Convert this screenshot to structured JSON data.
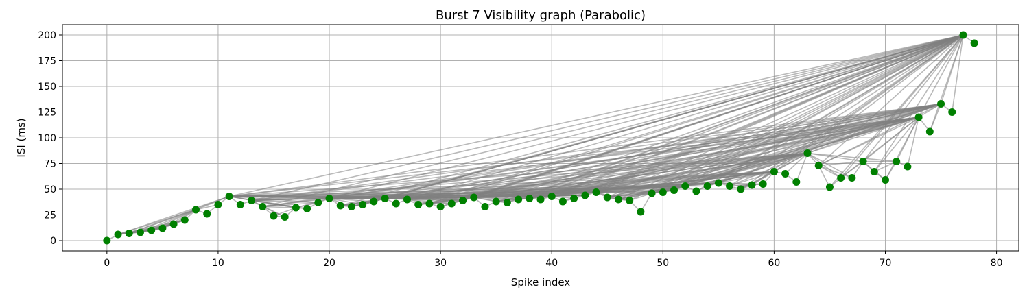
{
  "chart_data": {
    "type": "scatter",
    "title": "Burst 7 Visibility graph (Parabolic)",
    "xlabel": "Spike index",
    "ylabel": "ISI (ms)",
    "xlim": [
      -4,
      82
    ],
    "ylim": [
      -10,
      210
    ],
    "xticks": [
      0,
      10,
      20,
      30,
      40,
      50,
      60,
      70,
      80
    ],
    "yticks": [
      0,
      25,
      50,
      75,
      100,
      125,
      150,
      175,
      200
    ],
    "grid": true,
    "point_color": "#008000",
    "edge_color": "#808080",
    "x": [
      0,
      1,
      2,
      3,
      4,
      5,
      6,
      7,
      8,
      9,
      10,
      11,
      12,
      13,
      14,
      15,
      16,
      17,
      18,
      19,
      20,
      21,
      22,
      23,
      24,
      25,
      26,
      27,
      28,
      29,
      30,
      31,
      32,
      33,
      34,
      35,
      36,
      37,
      38,
      39,
      40,
      41,
      42,
      43,
      44,
      45,
      46,
      47,
      48,
      49,
      50,
      51,
      52,
      53,
      54,
      55,
      56,
      57,
      58,
      59,
      60,
      61,
      62,
      63,
      64,
      65,
      66,
      67,
      68,
      69,
      70,
      71,
      72,
      73,
      74,
      75,
      76,
      77,
      78
    ],
    "y": [
      0,
      6,
      7,
      8,
      10,
      12,
      16,
      20,
      30,
      26,
      35,
      43,
      35,
      39,
      33,
      24,
      23,
      32,
      31,
      37,
      41,
      34,
      33,
      35,
      38,
      41,
      36,
      40,
      35,
      36,
      33,
      36,
      39,
      42,
      33,
      38,
      37,
      40,
      41,
      40,
      43,
      38,
      41,
      44,
      47,
      42,
      40,
      39,
      28,
      46,
      47,
      49,
      53,
      48,
      53,
      56,
      53,
      50,
      54,
      55,
      67,
      65,
      57,
      85,
      73,
      52,
      61,
      61,
      77,
      67,
      59,
      77,
      72,
      120,
      106,
      133,
      125,
      200,
      192
    ]
  }
}
